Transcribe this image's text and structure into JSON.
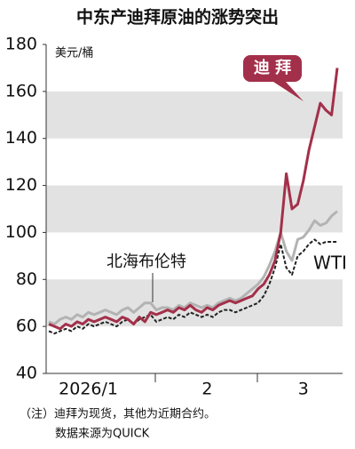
{
  "chart_data": {
    "type": "line",
    "title": "中东产迪拜原油的涨势突出",
    "y_label": "美元/桶",
    "categories": [
      null,
      null,
      null,
      null,
      null,
      null,
      null,
      "2026/1",
      null,
      null,
      null,
      null,
      null,
      null,
      null,
      null,
      null,
      null,
      null,
      null,
      null,
      null,
      null,
      null,
      null,
      null,
      null,
      null,
      "2",
      null,
      null,
      null,
      null,
      null,
      null,
      null,
      null,
      null,
      null,
      null,
      null,
      null,
      null,
      null,
      null,
      "3",
      null,
      null,
      null,
      null,
      null,
      null
    ],
    "series": [
      {
        "name": "迪 拜",
        "color": "#a3304a",
        "dash": false,
        "values": [
          61,
          60,
          59,
          61,
          60,
          62,
          61,
          63,
          62,
          63,
          64,
          63,
          62,
          64,
          63,
          61,
          64,
          62,
          66,
          65,
          66,
          67,
          66,
          68,
          67,
          69,
          67,
          66,
          68,
          67,
          69,
          70,
          71,
          70,
          71,
          72,
          73,
          76,
          78,
          82,
          88,
          100,
          125,
          110,
          112,
          122,
          135,
          145,
          155,
          152,
          150,
          170
        ]
      },
      {
        "name": "北海布伦特",
        "color": "#b3b3b3",
        "dash": false,
        "values": [
          62,
          61,
          63,
          64,
          63,
          65,
          64,
          66,
          65,
          66,
          67,
          66,
          65,
          67,
          68,
          66,
          68,
          70,
          70,
          67,
          68,
          68,
          67,
          69,
          68,
          70,
          69,
          68,
          69,
          68,
          70,
          71,
          72,
          71,
          72,
          74,
          76,
          78,
          81,
          86,
          92,
          100,
          92,
          88,
          97,
          98,
          101,
          105,
          103,
          104,
          107,
          109
        ]
      },
      {
        "name": "WTI",
        "color": "#222222",
        "dash": true,
        "values": [
          58,
          57,
          58,
          59,
          58,
          60,
          59,
          61,
          60,
          61,
          62,
          61,
          60,
          62,
          63,
          61,
          63,
          64,
          65,
          62,
          63,
          64,
          63,
          65,
          64,
          66,
          65,
          64,
          65,
          64,
          66,
          67,
          67,
          66,
          67,
          68,
          69,
          70,
          73,
          78,
          85,
          95,
          85,
          82,
          90,
          92,
          95,
          97,
          95,
          96,
          96,
          96
        ]
      }
    ],
    "ylim": [
      40,
      180
    ],
    "yticks": [
      40,
      60,
      80,
      100,
      120,
      140,
      160,
      180
    ],
    "notes": [
      "（注）迪拜为现货，其他为近期合约。",
      "数据来源为QUICK"
    ]
  }
}
